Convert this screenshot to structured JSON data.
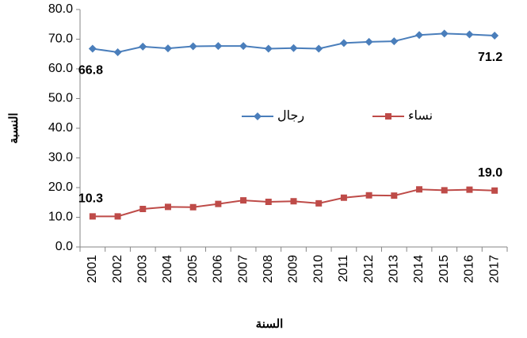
{
  "chart_data": {
    "type": "line",
    "x_label": "السنة",
    "y_label": "النسبة",
    "categories": [
      "2001",
      "2002",
      "2003",
      "2004",
      "2005",
      "2006",
      "2007",
      "2008",
      "2009",
      "2010",
      "2011",
      "2012",
      "2013",
      "2014",
      "2015",
      "2016",
      "2017"
    ],
    "series": [
      {
        "name": "رجال",
        "color": "#4a7ebb",
        "marker": "diamond",
        "values": [
          66.8,
          65.6,
          67.5,
          66.9,
          67.6,
          67.7,
          67.7,
          66.8,
          67.0,
          66.8,
          68.7,
          69.1,
          69.3,
          71.4,
          71.9,
          71.6,
          71.2
        ],
        "value_labels": [
          "66.8",
          null,
          null,
          null,
          null,
          null,
          null,
          null,
          null,
          null,
          null,
          null,
          null,
          null,
          null,
          null,
          "71.2"
        ]
      },
      {
        "name": "نساء",
        "color": "#be4b48",
        "marker": "square",
        "values": [
          10.3,
          10.3,
          12.8,
          13.5,
          13.4,
          14.5,
          15.7,
          15.2,
          15.4,
          14.7,
          16.6,
          17.4,
          17.3,
          19.4,
          19.1,
          19.3,
          19.0
        ],
        "value_labels": [
          "10.3",
          null,
          null,
          null,
          null,
          null,
          null,
          null,
          null,
          null,
          null,
          null,
          null,
          null,
          null,
          null,
          "19.0"
        ]
      }
    ],
    "ylim": [
      0,
      80
    ],
    "yticks": [
      {
        "value": 0,
        "label": "0.0"
      },
      {
        "value": 10,
        "label": "10.0"
      },
      {
        "value": 20,
        "label": "20.0"
      },
      {
        "value": 30,
        "label": "30.0"
      },
      {
        "value": 40,
        "label": "40.0"
      },
      {
        "value": 50,
        "label": "50.0"
      },
      {
        "value": 60,
        "label": "60.0"
      },
      {
        "value": 70,
        "label": "70.0"
      },
      {
        "value": 80,
        "label": "80.0"
      }
    ],
    "grid": false
  }
}
